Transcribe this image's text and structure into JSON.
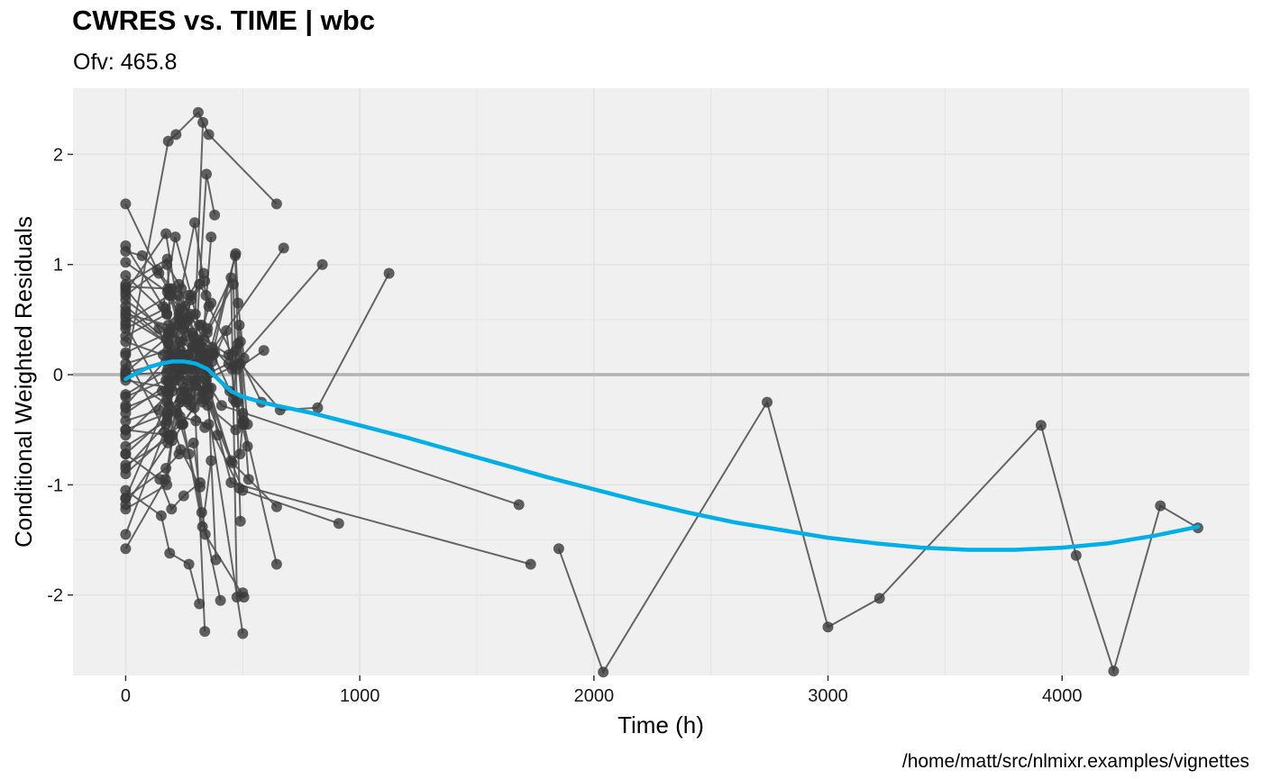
{
  "chart_data": {
    "type": "scatter",
    "title": "CWRES vs. TIME | wbc",
    "subtitle": "Ofv: 465.8",
    "xlabel": "Time (h)",
    "ylabel": "Conditional Weighted Residuals",
    "caption": "/home/matt/src/nlmixr.examples/vignettes",
    "xlim": [
      -225,
      4800
    ],
    "ylim": [
      -2.73,
      2.6
    ],
    "x_ticks": [
      0,
      1000,
      2000,
      3000,
      4000
    ],
    "x_tick_labels": [
      "0",
      "1000",
      "2000",
      "3000",
      "4000"
    ],
    "y_ticks": [
      -2,
      -1,
      0,
      1,
      2
    ],
    "y_tick_labels": [
      "-2",
      "-1",
      "0",
      "1",
      "2"
    ],
    "grid": true,
    "legend": "none",
    "colors": {
      "panel": "#f0f0f0",
      "grid": "#e2e2e2",
      "points": "#3a3a3a",
      "lines": "#555555",
      "reference_line": "#b3b3b3",
      "smooth": "#00aee8"
    },
    "reference_y": 0,
    "series": [
      {
        "x": [
          0,
          142,
          180,
          225,
          285
        ],
        "y": [
          1.55,
          0.92,
          0.78,
          0.45,
          0.38
        ]
      },
      {
        "x": [
          0,
          170,
          200,
          247,
          305
        ],
        "y": [
          -1.58,
          -0.95,
          -0.55,
          -0.15,
          0.1
        ]
      },
      {
        "x": [
          0,
          172,
          228,
          270,
          338
        ],
        "y": [
          0.75,
          1.28,
          0.55,
          -0.22,
          0.15
        ]
      },
      {
        "x": [
          0,
          165,
          212,
          298,
          330
        ],
        "y": [
          -1.45,
          -0.52,
          0.22,
          0.55,
          2.29
        ]
      },
      {
        "x": [
          0,
          183,
          242,
          315,
          365
        ],
        "y": [
          0.52,
          0.28,
          -0.45,
          -0.22,
          -0.12
        ]
      },
      {
        "x": [
          0,
          160,
          212,
          280,
          355
        ],
        "y": [
          1.17,
          0.62,
          1.25,
          0.72,
          0.05
        ]
      },
      {
        "x": [
          0,
          178,
          210,
          252,
          330
        ],
        "y": [
          -0.72,
          -0.38,
          0.15,
          0.05,
          0.12
        ]
      },
      {
        "x": [
          0,
          182,
          215,
          310,
          355,
          645
        ],
        "y": [
          0.05,
          2.12,
          2.18,
          2.38,
          2.18,
          1.55
        ]
      },
      {
        "x": [
          0,
          176,
          228,
          315,
          365
        ],
        "y": [
          -1.12,
          -0.25,
          0.52,
          0.82,
          0.65
        ]
      },
      {
        "x": [
          0,
          70,
          135,
          196,
          262
        ],
        "y": [
          1.12,
          1.08,
          0.95,
          0.78,
          0.52
        ]
      },
      {
        "x": [
          0,
          178,
          192,
          270,
          345,
          385
        ],
        "y": [
          0.82,
          1.05,
          0.42,
          0.5,
          0.18,
          -1.68
        ]
      },
      {
        "x": [
          0,
          185,
          212,
          262,
          330
        ],
        "y": [
          -0.02,
          -0.28,
          0.38,
          -0.22,
          -0.15
        ]
      },
      {
        "x": [
          0,
          156,
          182,
          235,
          318
        ],
        "y": [
          0.45,
          -0.15,
          -0.35,
          -0.68,
          -1.02
        ]
      },
      {
        "x": [
          0,
          152,
          188,
          270,
          315
        ],
        "y": [
          -1.05,
          -1.28,
          -1.62,
          -1.72,
          -2.08
        ]
      },
      {
        "x": [
          0,
          176,
          192,
          245,
          338
        ],
        "y": [
          0.35,
          0.55,
          0.72,
          0.42,
          -0.22
        ]
      },
      {
        "x": [
          0,
          190,
          238,
          295,
          343
        ],
        "y": [
          -0.28,
          0.18,
          0.78,
          1.38,
          0.72
        ]
      },
      {
        "x": [
          0,
          173,
          212,
          278,
          355,
          675
        ],
        "y": [
          0.62,
          0.32,
          -0.05,
          -0.28,
          0.18,
          1.15
        ]
      },
      {
        "x": [
          0,
          142,
          179,
          202,
          262
        ],
        "y": [
          -0.42,
          -0.32,
          -0.05,
          0.15,
          0.35
        ]
      },
      {
        "x": [
          0,
          185,
          215,
          262,
          338
        ],
        "y": [
          0.18,
          -0.58,
          -0.32,
          -0.25,
          -0.48
        ]
      },
      {
        "x": [
          0,
          176,
          228,
          290,
          345,
          392
        ],
        "y": [
          0.72,
          1.0,
          0.82,
          0.35,
          0.15,
          -0.55
        ]
      },
      {
        "x": [
          0,
          146,
          196,
          248,
          318
        ],
        "y": [
          -0.72,
          -0.95,
          -1.22,
          -1.1,
          -0.98
        ]
      },
      {
        "x": [
          0,
          180,
          210,
          280,
          338
        ],
        "y": [
          -1.18,
          -0.62,
          0.12,
          0.68,
          0.85
        ]
      },
      {
        "x": [
          0,
          172,
          200,
          268,
          315
        ],
        "y": [
          -0.85,
          -0.45,
          -0.15,
          0.18,
          0.45
        ]
      },
      {
        "x": [
          0,
          183,
          215,
          268,
          333
        ],
        "y": [
          0.02,
          0.35,
          0.48,
          0.72,
          0.92
        ]
      },
      {
        "x": [
          0,
          182,
          221,
          270,
          328,
          365
        ],
        "y": [
          -0.55,
          -0.18,
          -0.35,
          -0.72,
          -1.38,
          -0.78
        ]
      },
      {
        "x": [
          0,
          142,
          202,
          275,
          328,
          365
        ],
        "y": [
          0.78,
          0.42,
          0.08,
          -0.18,
          0.25,
          1.25
        ]
      },
      {
        "x": [
          0,
          172,
          228,
          300,
          345,
          380
        ],
        "y": [
          -0.02,
          0.12,
          0.0,
          0.28,
          1.82,
          1.45
        ]
      },
      {
        "x": [
          0,
          176,
          198,
          245,
          325,
          405
        ],
        "y": [
          -1.22,
          -1.0,
          -0.6,
          -0.45,
          -1.25,
          -2.05
        ]
      },
      {
        "x": [
          0,
          188,
          232,
          278,
          330,
          500,
          910
        ],
        "y": [
          -0.5,
          -0.55,
          -0.25,
          0.05,
          -0.15,
          -1.05,
          -1.35
        ]
      },
      {
        "x": [
          0,
          180,
          225,
          265,
          320,
          410,
          1680
        ],
        "y": [
          0.1,
          0.22,
          0.05,
          0.18,
          0.02,
          -0.28,
          -1.18
        ]
      },
      {
        "x": [
          0,
          190,
          232,
          288,
          345,
          450,
          1730
        ],
        "y": [
          0.02,
          0.12,
          0.3,
          0.08,
          -0.12,
          -0.98,
          -1.72
        ]
      },
      {
        "x": [
          0,
          176,
          252,
          315,
          375,
          505
        ],
        "y": [
          -0.3,
          -0.15,
          -0.12,
          0.2,
          0.18,
          -0.42
        ]
      },
      {
        "x": [
          0,
          185,
          232,
          300,
          355,
          485
        ],
        "y": [
          -0.82,
          -0.58,
          -0.38,
          -0.42,
          -0.45,
          -1.03
        ]
      },
      {
        "x": [
          0,
          160,
          210,
          268,
          330,
          470
        ],
        "y": [
          0.3,
          0.18,
          0.0,
          -0.05,
          -0.25,
          -0.5
        ]
      },
      {
        "x": [
          0,
          172,
          228,
          290,
          340,
          505
        ],
        "y": [
          -1.12,
          -0.85,
          -0.72,
          -0.62,
          -1.45,
          -2.02
        ]
      },
      {
        "x": [
          0,
          182,
          237,
          300,
          350,
          500
        ],
        "y": [
          0.58,
          0.28,
          0.05,
          -0.05,
          -0.28,
          -2.35
        ]
      },
      {
        "x": [
          0,
          178,
          232,
          285,
          338
        ],
        "y": [
          1.02,
          0.75,
          0.6,
          0.25,
          -2.33
        ]
      },
      {
        "x": [
          0,
          190,
          252,
          325,
          380,
          490,
          660,
          820,
          1125
        ],
        "y": [
          0.8,
          0.78,
          0.62,
          0.45,
          0.2,
          0.1,
          -0.32,
          -0.3,
          0.92
        ]
      },
      {
        "x": [
          0,
          176,
          240,
          295,
          355,
          455,
          645
        ],
        "y": [
          0.9,
          0.55,
          0.18,
          -0.05,
          -0.18,
          -0.8,
          -1.2
        ]
      },
      {
        "x": [
          0,
          182,
          235,
          300,
          340,
          462,
          840
        ],
        "y": [
          0.68,
          0.38,
          0.22,
          0.1,
          -0.05,
          0.08,
          1.0
        ]
      },
      {
        "x": [
          0,
          185,
          250,
          320,
          370,
          430,
          470,
          520
        ],
        "y": [
          -0.35,
          -0.08,
          0.05,
          0.22,
          0.12,
          0.4,
          -0.25,
          -0.65
        ]
      },
      {
        "x": [
          0,
          170,
          225,
          275,
          335,
          440,
          480,
          525
        ],
        "y": [
          0.42,
          0.6,
          0.72,
          0.55,
          0.32,
          0.18,
          0.28,
          -0.95
        ]
      },
      {
        "x": [
          0,
          182,
          250,
          315,
          370,
          455,
          490,
          505,
          645
        ],
        "y": [
          0.2,
          0.38,
          0.45,
          0.28,
          0.25,
          0.05,
          0.3,
          -0.45,
          -1.72
        ]
      },
      {
        "x": [
          0,
          176,
          235,
          292,
          345,
          445,
          478,
          500
        ],
        "y": [
          -0.65,
          -0.42,
          -0.22,
          -0.1,
          0.05,
          -0.15,
          -0.25,
          -0.45
        ]
      },
      {
        "x": [
          0,
          186,
          242,
          305,
          360,
          470,
          480,
          505
        ],
        "y": [
          0.48,
          0.72,
          0.5,
          0.32,
          0.2,
          1.1,
          0.65,
          0.15
        ]
      },
      {
        "x": [
          0,
          180,
          238,
          293,
          345,
          468,
          482,
          500
        ],
        "y": [
          -0.9,
          -0.55,
          -0.45,
          -0.3,
          -0.05,
          1.08,
          0.1,
          -0.35
        ]
      },
      {
        "x": [
          0,
          172,
          230,
          290,
          348,
          460,
          490
        ],
        "y": [
          -0.2,
          -0.05,
          0.15,
          0.28,
          0.38,
          0.82,
          -1.33
        ]
      },
      {
        "x": [
          0,
          178,
          240,
          300,
          355,
          450,
          488,
          500
        ],
        "y": [
          -0.5,
          -0.35,
          -0.15,
          -0.1,
          -0.12,
          -0.78,
          -0.72,
          -0.42
        ]
      },
      {
        "x": [
          0,
          180,
          235,
          298,
          350,
          450,
          475,
          500
        ],
        "y": [
          -0.18,
          0.05,
          0.18,
          0.25,
          0.42,
          0.88,
          -2.02,
          -1.98
        ]
      },
      {
        "x": [
          0,
          182,
          240,
          300,
          355,
          455,
          470,
          580
        ],
        "y": [
          0.55,
          0.45,
          0.3,
          0.2,
          0.62,
          0.18,
          0.22,
          -0.25
        ]
      },
      {
        "x": [
          0,
          175,
          232,
          295,
          350,
          460,
          485,
          520
        ],
        "y": [
          0.0,
          0.02,
          -0.05,
          0.05,
          0.08,
          -0.22,
          0.45,
          -0.45
        ]
      },
      {
        "x": [
          0,
          190,
          245,
          305,
          360,
          440,
          475,
          590
        ],
        "y": [
          -0.05,
          -0.12,
          0.08,
          0.12,
          0.02,
          0.1,
          0.05,
          0.22
        ]
      },
      {
        "x": [
          1850,
          2040,
          2740,
          3000,
          3220,
          3910,
          4060,
          4220,
          4420,
          4580
        ],
        "y": [
          -1.58,
          -2.7,
          -0.25,
          -2.29,
          -2.03,
          -0.46,
          -1.64,
          -2.69,
          -1.19,
          -1.39
        ]
      }
    ],
    "smooth": {
      "x": [
        0,
        50,
        100,
        150,
        200,
        250,
        300,
        350,
        400,
        450,
        500,
        600,
        800,
        1000,
        1200,
        1400,
        1600,
        1800,
        2000,
        2200,
        2400,
        2600,
        2800,
        3000,
        3200,
        3400,
        3600,
        3800,
        4000,
        4200,
        4400,
        4580
      ],
      "y": [
        -0.04,
        0.02,
        0.07,
        0.1,
        0.12,
        0.12,
        0.1,
        0.05,
        -0.05,
        -0.15,
        -0.2,
        -0.26,
        -0.35,
        -0.46,
        -0.57,
        -0.69,
        -0.81,
        -0.93,
        -1.04,
        -1.15,
        -1.25,
        -1.34,
        -1.41,
        -1.48,
        -1.53,
        -1.57,
        -1.59,
        -1.59,
        -1.57,
        -1.53,
        -1.46,
        -1.38
      ]
    }
  }
}
